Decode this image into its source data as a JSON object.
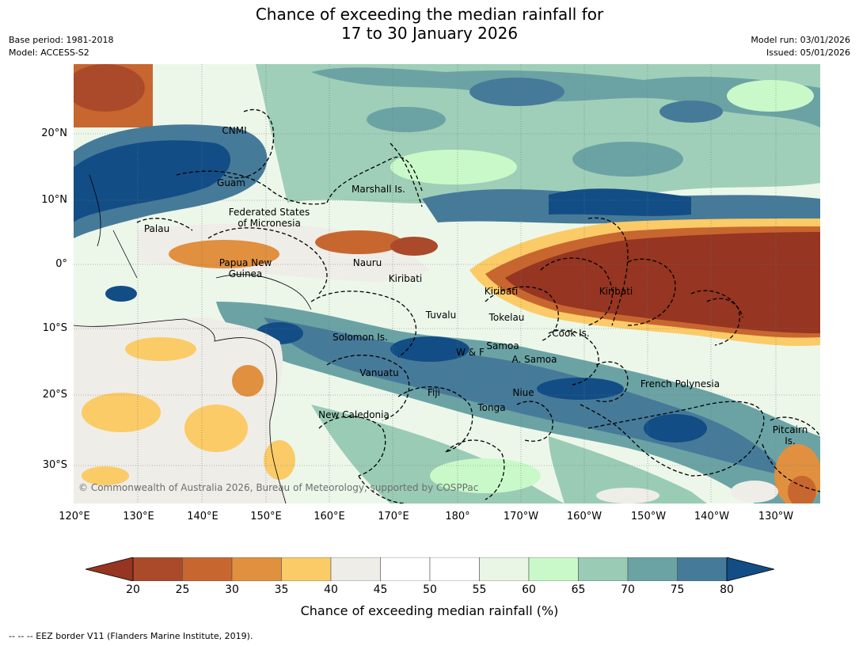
{
  "title_line1": "Chance of exceeding the median rainfall for",
  "title_line2": "17 to 30 January 2026",
  "base_period": "Base period: 1981-2018",
  "model": "Model: ACCESS-S2",
  "model_run": "Model run: 03/01/2026",
  "issued": "Issued: 05/01/2026",
  "lat_labels": [
    "20°N",
    "10°N",
    "0°",
    "10°S",
    "20°S",
    "30°S"
  ],
  "lon_labels": [
    "120°E",
    "130°E",
    "140°E",
    "150°E",
    "160°E",
    "170°E",
    "180°",
    "170°W",
    "160°W",
    "150°W",
    "140°W",
    "130°W"
  ],
  "places": {
    "cnmi": "CNMI",
    "guam": "Guam",
    "marshall": "Marshall Is.",
    "fsm1": "Federated States",
    "fsm2": "of Micronesia",
    "palau": "Palau",
    "png1": "Papua New",
    "png2": "Guinea",
    "nauru": "Nauru",
    "kiribati_w": "Kiribati",
    "kiribati_c": "Kiribati",
    "kiribati_e": "Kiribati",
    "tuvalu": "Tuvalu",
    "tokelau": "Tokelau",
    "cook": "Cook Is.",
    "solomon": "Solomon Is.",
    "wf": "W & F",
    "samoa": "Samoa",
    "asamoa": "A. Samoa",
    "vanuatu": "Vanuatu",
    "fiji": "Fiji",
    "niue": "Niue",
    "tonga": "Tonga",
    "frpoly": "French Polynesia",
    "newcal": "New Caledonia",
    "pitcairn1": "Pitcairn",
    "pitcairn2": "Is."
  },
  "copyright": "© Commonwealth of Australia 2026, Bureau of Meteorology, supported by COSPPac",
  "colorbar": {
    "ticks": [
      "20",
      "25",
      "30",
      "35",
      "40",
      "45",
      "50",
      "55",
      "60",
      "65",
      "70",
      "75",
      "80"
    ],
    "colors": [
      "#aa4a2a",
      "#c8662f",
      "#e0903f",
      "#fbcb67",
      "#efede8",
      "#ffffff",
      "#ffffff",
      "#e9f6e6",
      "#c9f9c9",
      "#99cbb5",
      "#6ba3a5",
      "#467a99"
    ],
    "low_color": "#953522",
    "high_color": "#124d86",
    "label": "Chance of exceeding median rainfall (%)"
  },
  "footer": "-- -- -- EEZ border V11 (Flanders Marine Institute, 2019)."
}
